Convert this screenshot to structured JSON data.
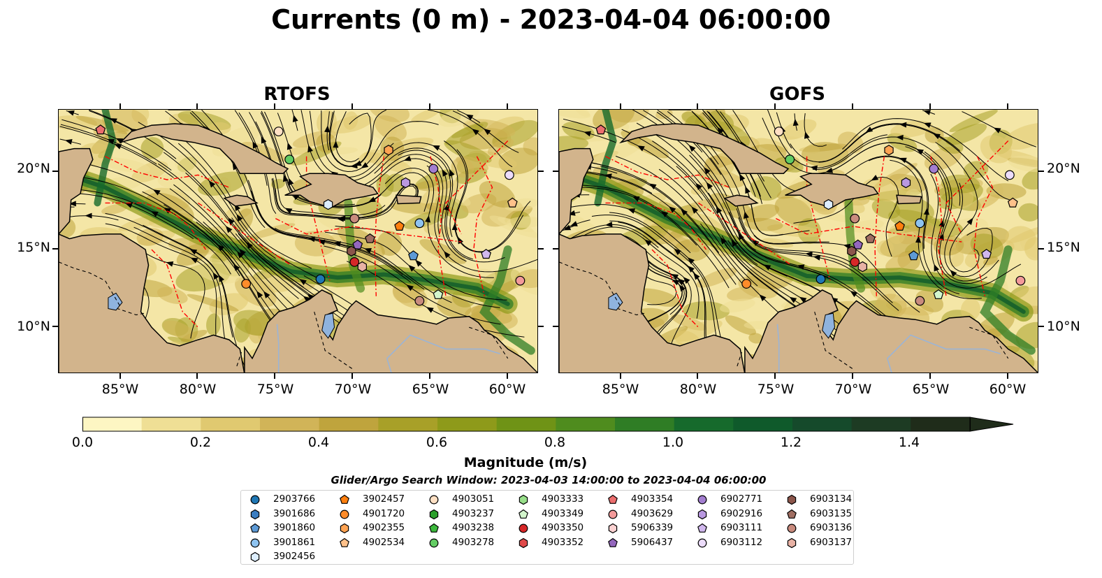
{
  "title": "Currents (0 m) - 2023-04-04 06:00:00",
  "panels": [
    {
      "id": "rtofs",
      "title": "RTOFS"
    },
    {
      "id": "gofs",
      "title": "GOFS"
    }
  ],
  "map": {
    "lon_range": [
      -89,
      -58
    ],
    "lat_range": [
      7,
      24
    ],
    "lat_ticks": [
      "20°N",
      "15°N",
      "10°N"
    ],
    "lon_ticks": [
      "85°W",
      "80°W",
      "75°W",
      "70°W",
      "65°W",
      "60°W"
    ],
    "land_color": "#d2b48c",
    "eez_color": "#ff0000",
    "streamline_color": "#000000"
  },
  "colorbar": {
    "label": "Magnitude (m/s)",
    "ticks": [
      "0.0",
      "0.2",
      "0.4",
      "0.6",
      "0.8",
      "1.0",
      "1.2",
      "1.4"
    ],
    "min": 0.0,
    "max": 1.5,
    "extend": "max",
    "colors": [
      "#fdf6c3",
      "#efdf95",
      "#e0c970",
      "#d1b458",
      "#bfa43d",
      "#a8a028",
      "#8e9a1a",
      "#6f9316",
      "#4f8c1e",
      "#2f7d25",
      "#166a2c",
      "#0f5a2b",
      "#154a2b",
      "#1d3b23",
      "#1f2c1a"
    ]
  },
  "search_window": "Glider/Argo Search Window: 2023-04-03 14:00:00 to 2023-04-04 06:00:00",
  "legend": [
    {
      "id": "2903766",
      "shape": "circle",
      "color": "#1f77b4"
    },
    {
      "id": "3901686",
      "shape": "hexagon",
      "color": "#3a7dc1"
    },
    {
      "id": "3901860",
      "shape": "pentagon",
      "color": "#5d9ad6"
    },
    {
      "id": "3901861",
      "shape": "circle",
      "color": "#8ec3f0"
    },
    {
      "id": "3902456",
      "shape": "hexagon",
      "color": "#ddeeff"
    },
    {
      "id": "3902457",
      "shape": "pentagon",
      "color": "#ff7f0e"
    },
    {
      "id": "4901720",
      "shape": "circle",
      "color": "#ff8c2a"
    },
    {
      "id": "4902355",
      "shape": "hexagon",
      "color": "#ffa352"
    },
    {
      "id": "4902534",
      "shape": "pentagon",
      "color": "#ffc18a"
    },
    {
      "id": "4903051",
      "shape": "circle",
      "color": "#ffe0c4"
    },
    {
      "id": "4903237",
      "shape": "hexagon",
      "color": "#2ca02c"
    },
    {
      "id": "4903238",
      "shape": "pentagon",
      "color": "#3cb83c"
    },
    {
      "id": "4903278",
      "shape": "circle",
      "color": "#63cc63"
    },
    {
      "id": "4903333",
      "shape": "hexagon",
      "color": "#98df8a"
    },
    {
      "id": "4903349",
      "shape": "pentagon",
      "color": "#d3f5cc"
    },
    {
      "id": "4903350",
      "shape": "circle",
      "color": "#d62728"
    },
    {
      "id": "4903352",
      "shape": "hexagon",
      "color": "#e04a4a"
    },
    {
      "id": "4903354",
      "shape": "pentagon",
      "color": "#ec6e6e"
    },
    {
      "id": "4903629",
      "shape": "circle",
      "color": "#f39a9a"
    },
    {
      "id": "5906339",
      "shape": "hexagon",
      "color": "#fcd2d2"
    },
    {
      "id": "5906437",
      "shape": "pentagon",
      "color": "#9467bd"
    },
    {
      "id": "6902771",
      "shape": "circle",
      "color": "#a37ed0"
    },
    {
      "id": "6902916",
      "shape": "hexagon",
      "color": "#b998e0"
    },
    {
      "id": "6903111",
      "shape": "pentagon",
      "color": "#d1b8ee"
    },
    {
      "id": "6903112",
      "shape": "circle",
      "color": "#ecdcfb"
    },
    {
      "id": "6903134",
      "shape": "hexagon",
      "color": "#8c564b"
    },
    {
      "id": "6903135",
      "shape": "pentagon",
      "color": "#a06e62"
    },
    {
      "id": "6903136",
      "shape": "circle",
      "color": "#c98b7e"
    },
    {
      "id": "6903137",
      "shape": "hexagon",
      "color": "#e8b2a5"
    }
  ],
  "platforms_rtofs": [
    {
      "id": "4903354",
      "lon": -86.3,
      "lat": 22.7
    },
    {
      "id": "4903051",
      "lon": -74.8,
      "lat": 22.6
    },
    {
      "id": "4903278",
      "lon": -74.1,
      "lat": 20.8
    },
    {
      "id": "4902355",
      "lon": -67.7,
      "lat": 21.4
    },
    {
      "id": "6902771",
      "lon": -64.8,
      "lat": 20.2
    },
    {
      "id": "6902916",
      "lon": -66.6,
      "lat": 19.3
    },
    {
      "id": "6903112",
      "lon": -59.9,
      "lat": 19.8
    },
    {
      "id": "4902534",
      "lon": -59.7,
      "lat": 18.0
    },
    {
      "id": "3902456",
      "lon": -71.6,
      "lat": 17.9
    },
    {
      "id": "6903136",
      "lon": -69.9,
      "lat": 17.0
    },
    {
      "id": "3901861",
      "lon": -65.7,
      "lat": 16.7
    },
    {
      "id": "3902457",
      "lon": -67.0,
      "lat": 16.5
    },
    {
      "id": "6903135",
      "lon": -68.9,
      "lat": 15.7
    },
    {
      "id": "5906437",
      "lon": -69.7,
      "lat": 15.3
    },
    {
      "id": "6903134",
      "lon": -70.1,
      "lat": 14.9
    },
    {
      "id": "3901860",
      "lon": -66.1,
      "lat": 14.6
    },
    {
      "id": "6903111",
      "lon": -61.4,
      "lat": 14.7
    },
    {
      "id": "4903350",
      "lon": -69.9,
      "lat": 14.2
    },
    {
      "id": "6903137",
      "lon": -69.4,
      "lat": 13.9
    },
    {
      "id": "2903766",
      "lon": -72.1,
      "lat": 13.1
    },
    {
      "id": "4901720",
      "lon": -76.9,
      "lat": 12.8
    },
    {
      "id": "4903629",
      "lon": -59.2,
      "lat": 13.0
    },
    {
      "id": "4903349",
      "lon": -64.5,
      "lat": 12.1
    },
    {
      "id": "6903136b",
      "lon": -65.7,
      "lat": 11.7
    }
  ]
}
